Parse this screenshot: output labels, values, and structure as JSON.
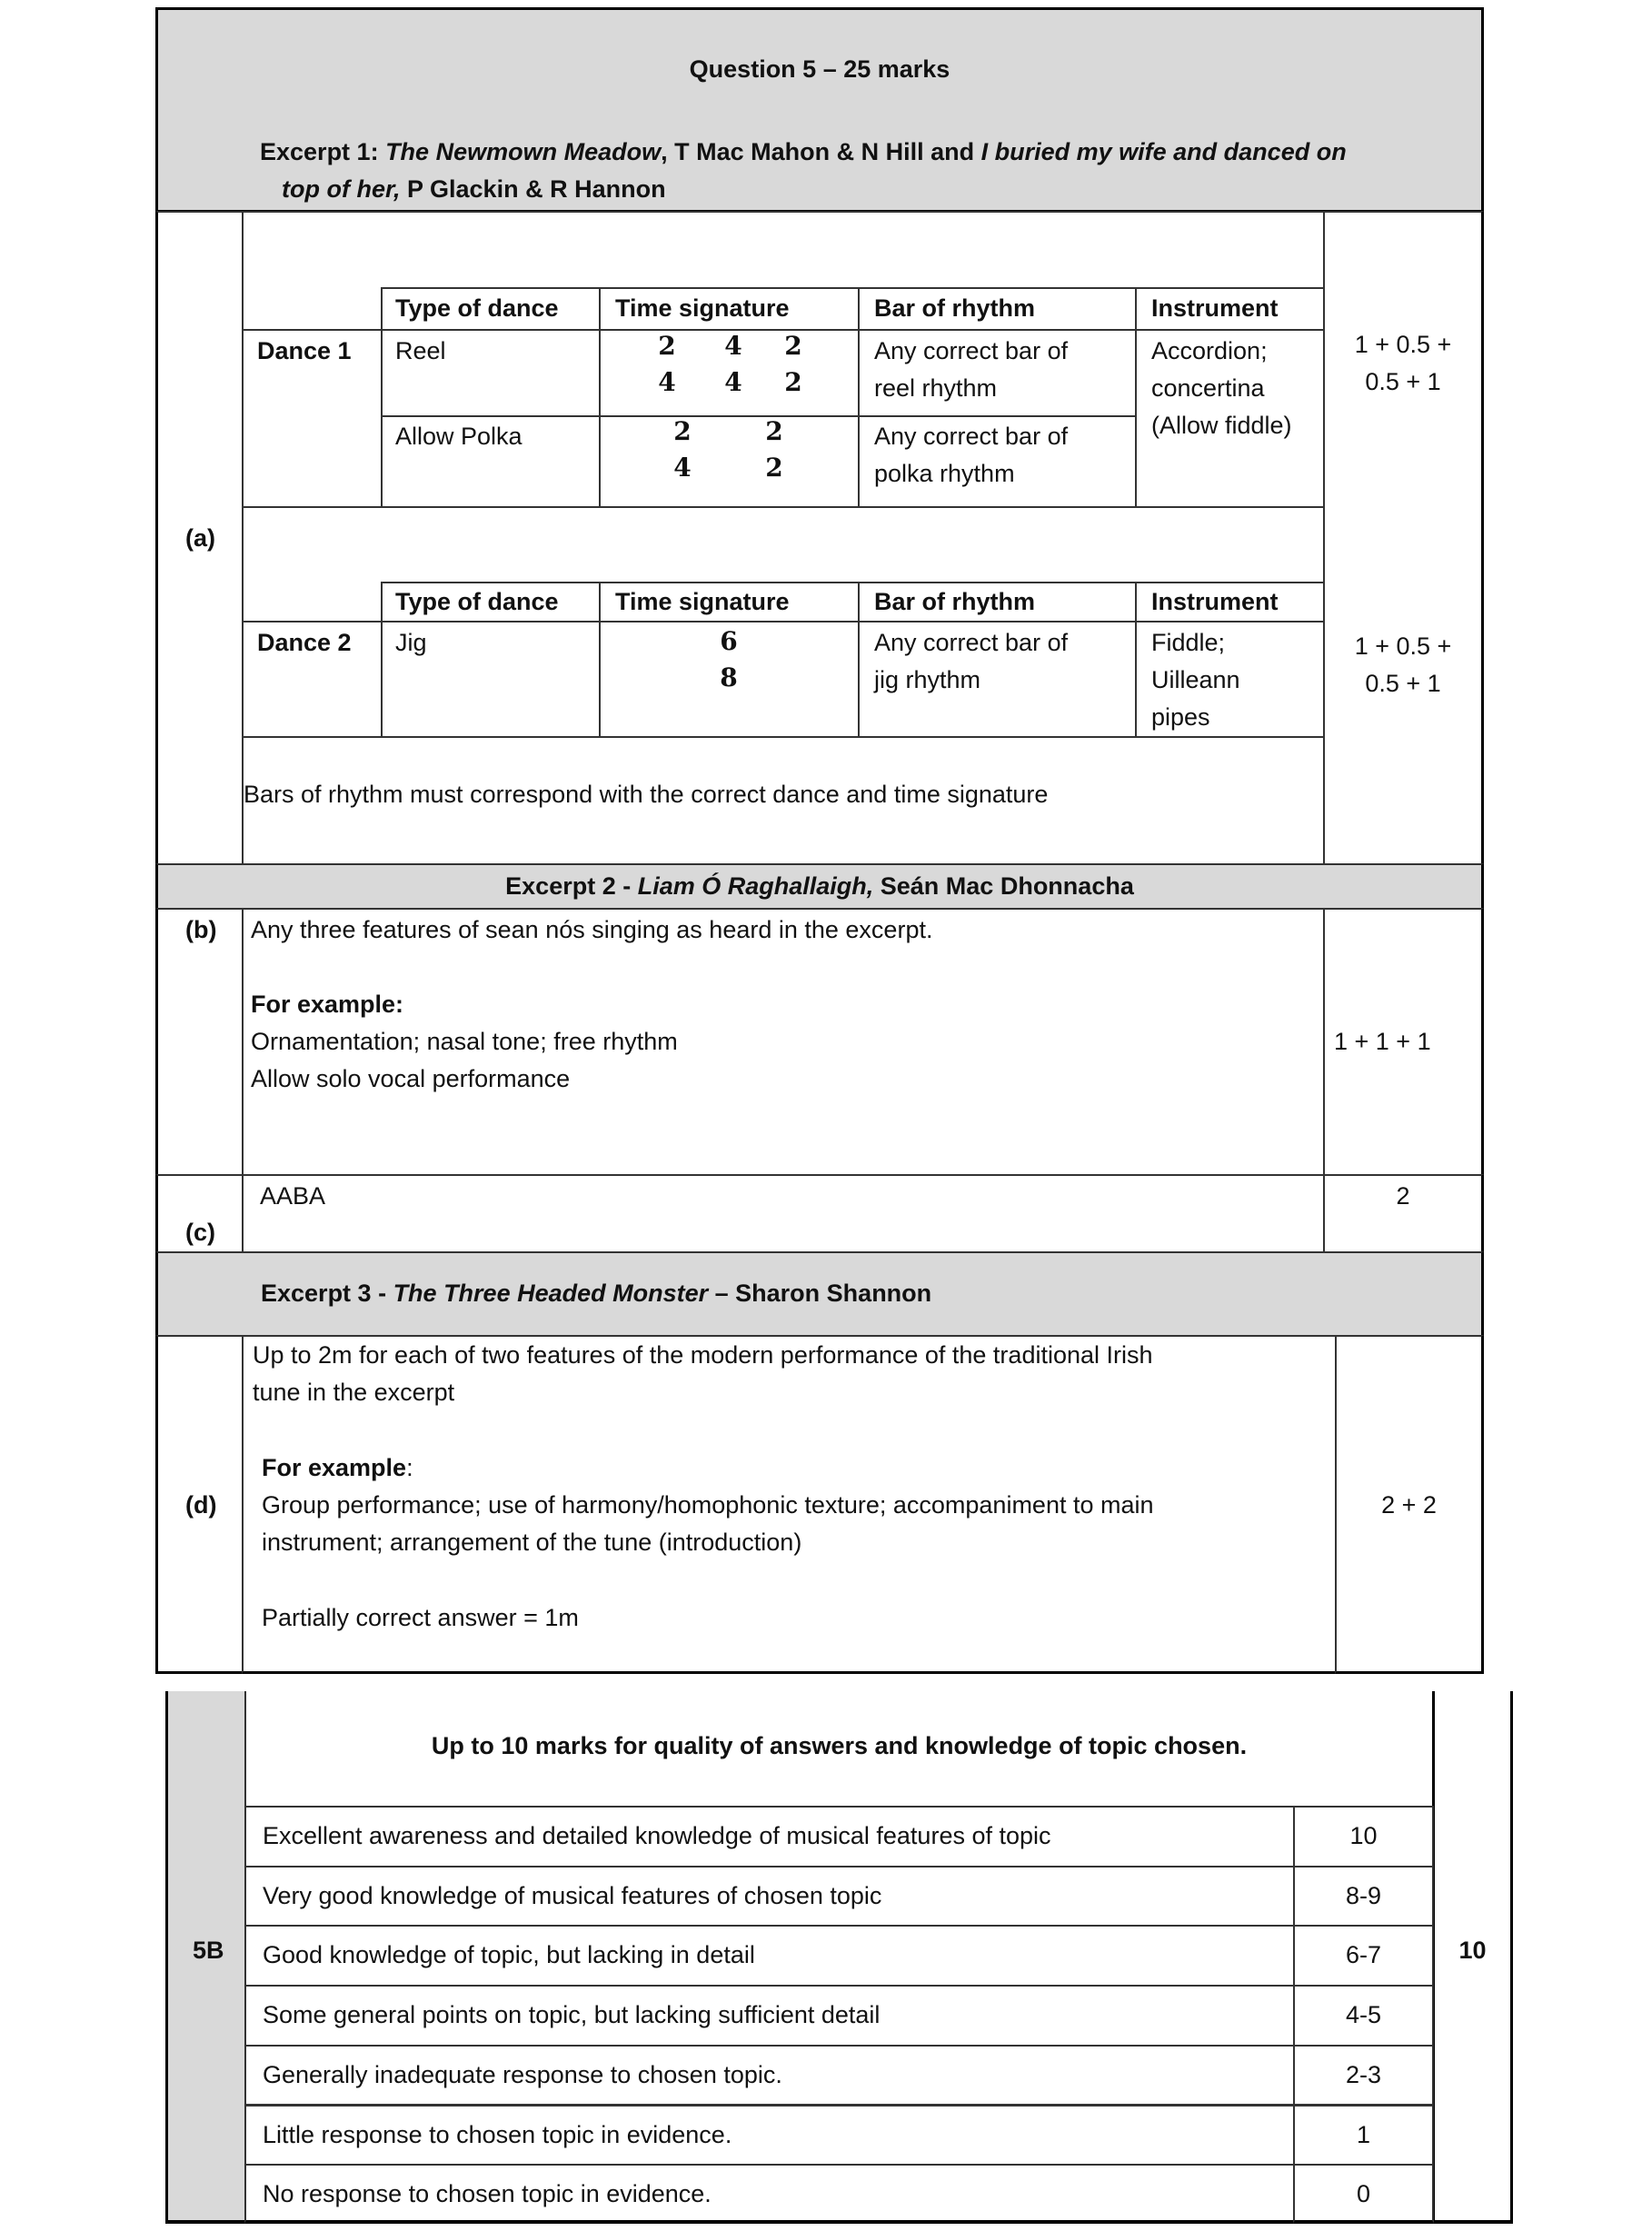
{
  "question_header": "Question 5 – 25 marks",
  "excerpt1": {
    "prefix": "Excerpt 1: ",
    "title1": "The Newmown Meadow",
    "mid": ", T Mac Mahon & N Hill and ",
    "title2_line1": "I buried my wife and danced on",
    "title2_line2": "top of her,",
    "suffix": " P Glackin & R Hannon"
  },
  "part_a": {
    "label": "(a)",
    "headers": [
      "Type of dance",
      "Time signature",
      "Bar of rhythm",
      "Instrument"
    ],
    "dance1": {
      "label": "Dance 1",
      "rows": [
        {
          "type": "Reel",
          "time_signatures": [
            [
              "2",
              "4"
            ],
            [
              "4",
              "4"
            ],
            [
              "2",
              "2"
            ]
          ],
          "bar": [
            "Any correct bar of",
            "reel rhythm"
          ]
        },
        {
          "type": "Allow Polka",
          "time_signatures": [
            [
              "2",
              "4"
            ],
            [
              "2",
              "2"
            ]
          ],
          "bar": [
            "Any correct bar of",
            "polka rhythm"
          ]
        }
      ],
      "instrument": [
        "Accordion;",
        "concertina",
        "(Allow fiddle)"
      ],
      "marks": [
        "1 + 0.5 +",
        "0.5 + 1"
      ]
    },
    "dance2": {
      "label": "Dance 2",
      "type": "Jig",
      "time_signatures": [
        [
          "6",
          "8"
        ]
      ],
      "bar": [
        "Any correct bar of",
        "jig rhythm"
      ],
      "instrument": [
        "Fiddle;",
        "Uilleann",
        "pipes"
      ],
      "marks": [
        "1 + 0.5 +",
        "0.5 + 1"
      ]
    },
    "note": "Bars of rhythm must correspond with the correct dance and time signature"
  },
  "excerpt2": {
    "prefix": "Excerpt 2 - ",
    "title": "Liam Ó Raghallaigh,",
    "suffix": " Seán Mac Dhonnacha"
  },
  "part_b": {
    "label": "(b)",
    "line1": "Any three features of sean nós singing as heard in the excerpt.",
    "example_label": "For example:",
    "line2": "Ornamentation; nasal tone; free rhythm",
    "line3": "Allow solo vocal performance",
    "marks": "1 + 1 + 1"
  },
  "part_c": {
    "label": "(c)",
    "answer": "AABA",
    "marks": "2"
  },
  "excerpt3": {
    "prefix": "Excerpt 3 - ",
    "title": "The Three Headed Monster",
    "suffix": " – Sharon Shannon"
  },
  "part_d": {
    "label": "(d)",
    "line1": "Up to 2m for each of two features of the modern performance of the traditional Irish",
    "line2": "tune in the excerpt",
    "example_label": "For example",
    "example_colon": ":",
    "line3": "Group performance; use of harmony/homophonic texture; accompaniment to main",
    "line4": "instrument; arrangement of the tune (introduction)",
    "line5": "Partially correct answer = 1m",
    "marks": "2 + 2"
  },
  "section_5b": {
    "label": "5B",
    "header": "Up to 10 marks for quality of answers and knowledge of topic chosen.",
    "total": "10",
    "rows": [
      {
        "criterion": "Excellent awareness and detailed knowledge of musical features of topic",
        "marks": "10"
      },
      {
        "criterion": "Very good knowledge of musical features of chosen topic",
        "marks": "8-9"
      },
      {
        "criterion": "Good knowledge of topic, but lacking in detail",
        "marks": "6-7"
      },
      {
        "criterion": "Some general points on topic, but lacking sufficient detail",
        "marks": "4-5"
      },
      {
        "criterion": "Generally inadequate response to chosen topic.",
        "marks": "2-3"
      },
      {
        "criterion": "Little response to chosen topic in evidence.",
        "marks": "1"
      },
      {
        "criterion": "No response to chosen topic in evidence.",
        "marks": "0"
      }
    ]
  }
}
